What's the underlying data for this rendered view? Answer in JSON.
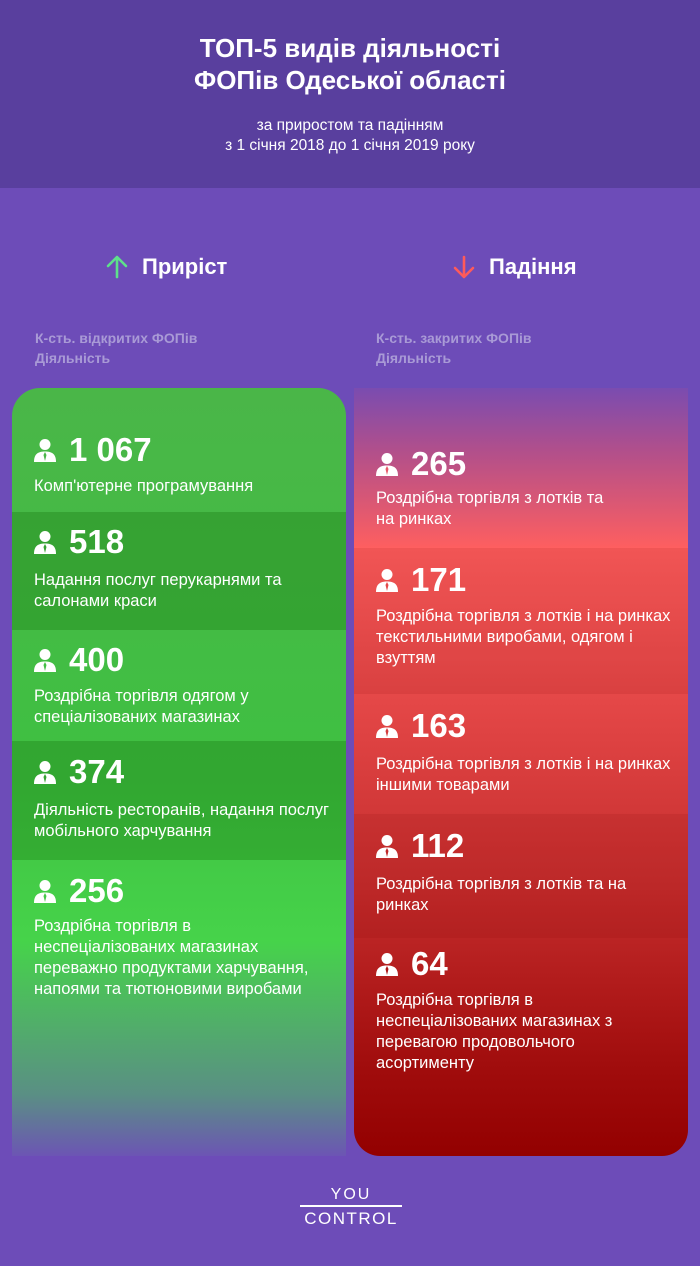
{
  "header": {
    "title_line1": "ТОП-5 видів діяльності",
    "title_line2": "ФОПів Одеської області",
    "subtitle_line1": "за приростом та падінням",
    "subtitle_line2": "з 1 січня 2018 до 1 січня 2019 року"
  },
  "growth": {
    "label": "Приріст",
    "legend_count": "К-сть. відкритих ФОПів",
    "legend_activity": "Діяльність",
    "color": "#45c046",
    "arrow_color": "#5ee08b",
    "items": [
      {
        "count": "1 067",
        "activity": "Комп'ютерне програмування"
      },
      {
        "count": "518",
        "activity": "Надання послуг перукарнями та салонами краси"
      },
      {
        "count": "400",
        "activity": "Роздрібна торгівля одягом у спеціалізованих магазинах"
      },
      {
        "count": "374",
        "activity": "Діяльність ресторанів, надання послуг мобільного харчування"
      },
      {
        "count": "256",
        "activity": "Роздрібна торгівля в неспеціалізованих магазинах переважно продуктами харчування, напоями та тютюновими виробами"
      }
    ]
  },
  "decline": {
    "label": "Падіння",
    "legend_count": "К-сть. закритих ФОПів",
    "legend_activity": "Діяльність",
    "color": "#e03b3b",
    "arrow_color": "#ff5a5a",
    "items": [
      {
        "count": "265",
        "activity": "Роздрібна торгівля з лотків та на ринках"
      },
      {
        "count": "171",
        "activity": "Роздрібна торгівля з лотків і на ринках текстильними виробами, одягом і взуттям"
      },
      {
        "count": "163",
        "activity": "Роздрібна торгівля з лотків і на ринках іншими товарами"
      },
      {
        "count": "112",
        "activity": "Роздрібна торгівля з лотків та на ринках"
      },
      {
        "count": "64",
        "activity": "Роздрібна торгівля в неспеціалізованих магазинах з перевагою продовольчого асортименту"
      }
    ]
  },
  "logo": {
    "top": "YOU",
    "bottom": "CONTROL"
  },
  "icons": {
    "person": "person-icon",
    "up": "arrow-up-icon",
    "down": "arrow-down-icon"
  }
}
